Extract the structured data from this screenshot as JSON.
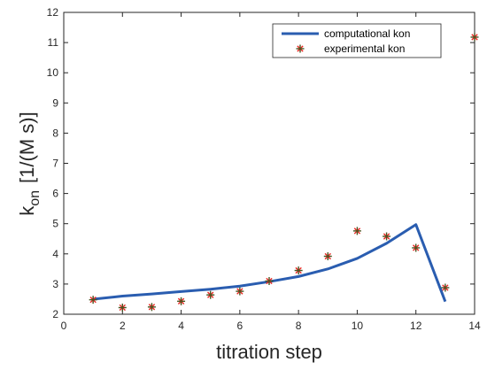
{
  "chart_data": {
    "type": "line",
    "xlabel": "titration step",
    "ylabel_main": "k",
    "ylabel_sub": "on",
    "ylabel_units": "[1/(M s)]",
    "xlim": [
      0,
      14
    ],
    "ylim": [
      2,
      12
    ],
    "xticks": [
      "0",
      "2",
      "4",
      "6",
      "8",
      "10",
      "12",
      "14"
    ],
    "yticks": [
      "2",
      "3",
      "4",
      "5",
      "6",
      "7",
      "8",
      "9",
      "10",
      "11",
      "12"
    ],
    "grid": false,
    "legend_position": "top-right",
    "colors": {
      "line": "#2a5db0",
      "marker_star": "#e8251f",
      "marker_plus": "#4b5320",
      "axis": "#262626"
    },
    "series": [
      {
        "name": "computational kon",
        "style": "line",
        "x": [
          1,
          2,
          3,
          4,
          5,
          6,
          7,
          8,
          9,
          10,
          11,
          12,
          13
        ],
        "y": [
          2.5,
          2.6,
          2.67,
          2.75,
          2.83,
          2.93,
          3.08,
          3.25,
          3.5,
          3.85,
          4.35,
          4.97,
          2.42
        ]
      },
      {
        "name": "experimental kon",
        "style": "markers",
        "x": [
          1,
          2,
          3,
          4,
          5,
          6,
          7,
          8,
          9,
          10,
          11,
          12,
          13,
          14
        ],
        "y": [
          2.48,
          2.22,
          2.24,
          2.43,
          2.64,
          2.76,
          3.1,
          3.45,
          3.92,
          4.76,
          4.58,
          4.2,
          2.88,
          11.18
        ]
      }
    ]
  }
}
